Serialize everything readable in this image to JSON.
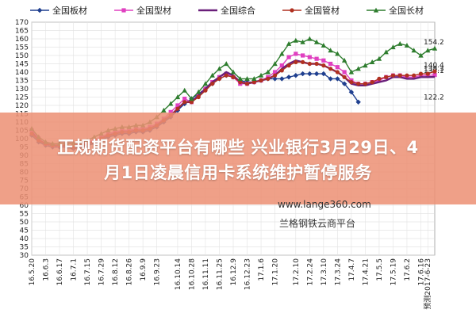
{
  "banner": {
    "line1": "正规期货配资平台有哪些 兴业银行3月29日、4",
    "line2": "月1日凌晨信用卡系统维护暂停服务"
  },
  "watermark": {
    "url": "www.lange360.com",
    "name": "兰格钢铁云商平台"
  },
  "chart_data": {
    "type": "line",
    "ylim": [
      30,
      170
    ],
    "yticks": [
      30,
      35,
      40,
      45,
      50,
      55,
      60,
      65,
      70,
      75,
      80,
      85,
      90,
      95,
      100,
      105,
      110,
      115,
      120,
      125,
      130,
      135,
      140,
      145,
      150,
      155,
      160,
      165,
      170
    ],
    "x_tick_labels": [
      "16.5.20",
      "16.6.3",
      "16.6.17",
      "16.7.1",
      "16.7.15",
      "16.7.29",
      "16.8.12",
      "16.8.26",
      "16.9.9",
      "16.9.23",
      "16.10.14",
      "16.10.28",
      "16.11.11",
      "16.11.25",
      "16.12.9",
      "16.12.23",
      "17.1.6",
      "17.1.20",
      "17.2.10",
      "17.2.24",
      "17.3.10",
      "17.3.24",
      "17.4.7",
      "17.4.21",
      "17.5.5",
      "17.5.19",
      "17.6.2",
      "17.6.16",
      "预测2017-6-23"
    ],
    "x_index_of_ticks": [
      0,
      2,
      4,
      6,
      8,
      10,
      12,
      14,
      16,
      18,
      21,
      23,
      25,
      27,
      29,
      31,
      33,
      35,
      38,
      40,
      42,
      44,
      46,
      48,
      50,
      52,
      54,
      56,
      57
    ],
    "series": [
      {
        "name": "全国板材",
        "color": "#1f3f8f",
        "marker": "diamond",
        "values": [
          102,
          98,
          96,
          95,
          95,
          95,
          94,
          95,
          96,
          97,
          99,
          101,
          102,
          103,
          103,
          104,
          104,
          105,
          107,
          110,
          113,
          117,
          121,
          124,
          127,
          130,
          133,
          136,
          138,
          137,
          135,
          134,
          134,
          135,
          136,
          136,
          136,
          137,
          138,
          139,
          139,
          139,
          139,
          136,
          136,
          133,
          128,
          122,
          null,
          null,
          null,
          null,
          null,
          null,
          null,
          null,
          null,
          null,
          null
        ],
        "end_label": null
      },
      {
        "name": "全国型材",
        "color": "#e040c0",
        "marker": "square",
        "values": [
          105,
          100,
          97,
          96,
          96,
          96,
          96,
          97,
          98,
          99,
          101,
          103,
          104,
          105,
          105,
          106,
          106,
          107,
          109,
          112,
          116,
          120,
          124,
          122,
          126,
          130,
          134,
          137,
          139,
          137,
          133,
          133,
          134,
          135,
          137,
          140,
          144,
          149,
          151,
          150,
          149,
          148,
          147,
          145,
          143,
          140,
          135,
          133,
          133,
          134,
          135,
          137,
          138,
          138,
          137,
          137,
          138,
          138,
          138.3
        ],
        "end_label": "138.3"
      },
      {
        "name": "全国综合",
        "color": "#6a1f7a",
        "marker": "none",
        "values": [
          104,
          99,
          97,
          96,
          96,
          96,
          95,
          96,
          97,
          98,
          100,
          102,
          103,
          104,
          104,
          105,
          105,
          106,
          108,
          111,
          114,
          118,
          122,
          122,
          126,
          130,
          134,
          137,
          140,
          138,
          134,
          133,
          134,
          135,
          136,
          138,
          142,
          145,
          147,
          146,
          145,
          145,
          144,
          142,
          140,
          137,
          133,
          132,
          132,
          133,
          134,
          135,
          137,
          137,
          136,
          136,
          137,
          137,
          137.1
        ],
        "end_label": "137.1"
      },
      {
        "name": "全国管材",
        "color": "#b03020",
        "marker": "circle",
        "values": [
          103,
          99,
          97,
          96,
          96,
          96,
          95,
          96,
          97,
          98,
          100,
          102,
          103,
          104,
          104,
          105,
          105,
          106,
          108,
          111,
          114,
          118,
          122,
          122,
          125,
          129,
          133,
          136,
          138,
          137,
          134,
          133,
          134,
          135,
          136,
          138,
          141,
          144,
          146,
          146,
          145,
          145,
          144,
          142,
          140,
          137,
          134,
          133,
          133,
          134,
          136,
          137,
          138,
          138,
          138,
          138,
          139,
          139,
          140.4
        ],
        "end_label": "140.4"
      },
      {
        "name": "全国长材",
        "color": "#2e7d2e",
        "marker": "triangle",
        "values": [
          106,
          101,
          98,
          97,
          97,
          97,
          97,
          98,
          99,
          101,
          103,
          105,
          106,
          107,
          107,
          108,
          108,
          110,
          113,
          117,
          121,
          125,
          129,
          124,
          128,
          133,
          138,
          142,
          145,
          140,
          136,
          136,
          136,
          138,
          140,
          145,
          151,
          157,
          159,
          158,
          160,
          158,
          156,
          153,
          151,
          147,
          140,
          142,
          144,
          146,
          148,
          152,
          155,
          157,
          156,
          153,
          150,
          153,
          154.2
        ],
        "end_label": "154.2"
      }
    ],
    "extra_labels": [
      {
        "value": 122.2,
        "text": "122.2"
      }
    ],
    "grid": true,
    "legend_position": "top"
  }
}
